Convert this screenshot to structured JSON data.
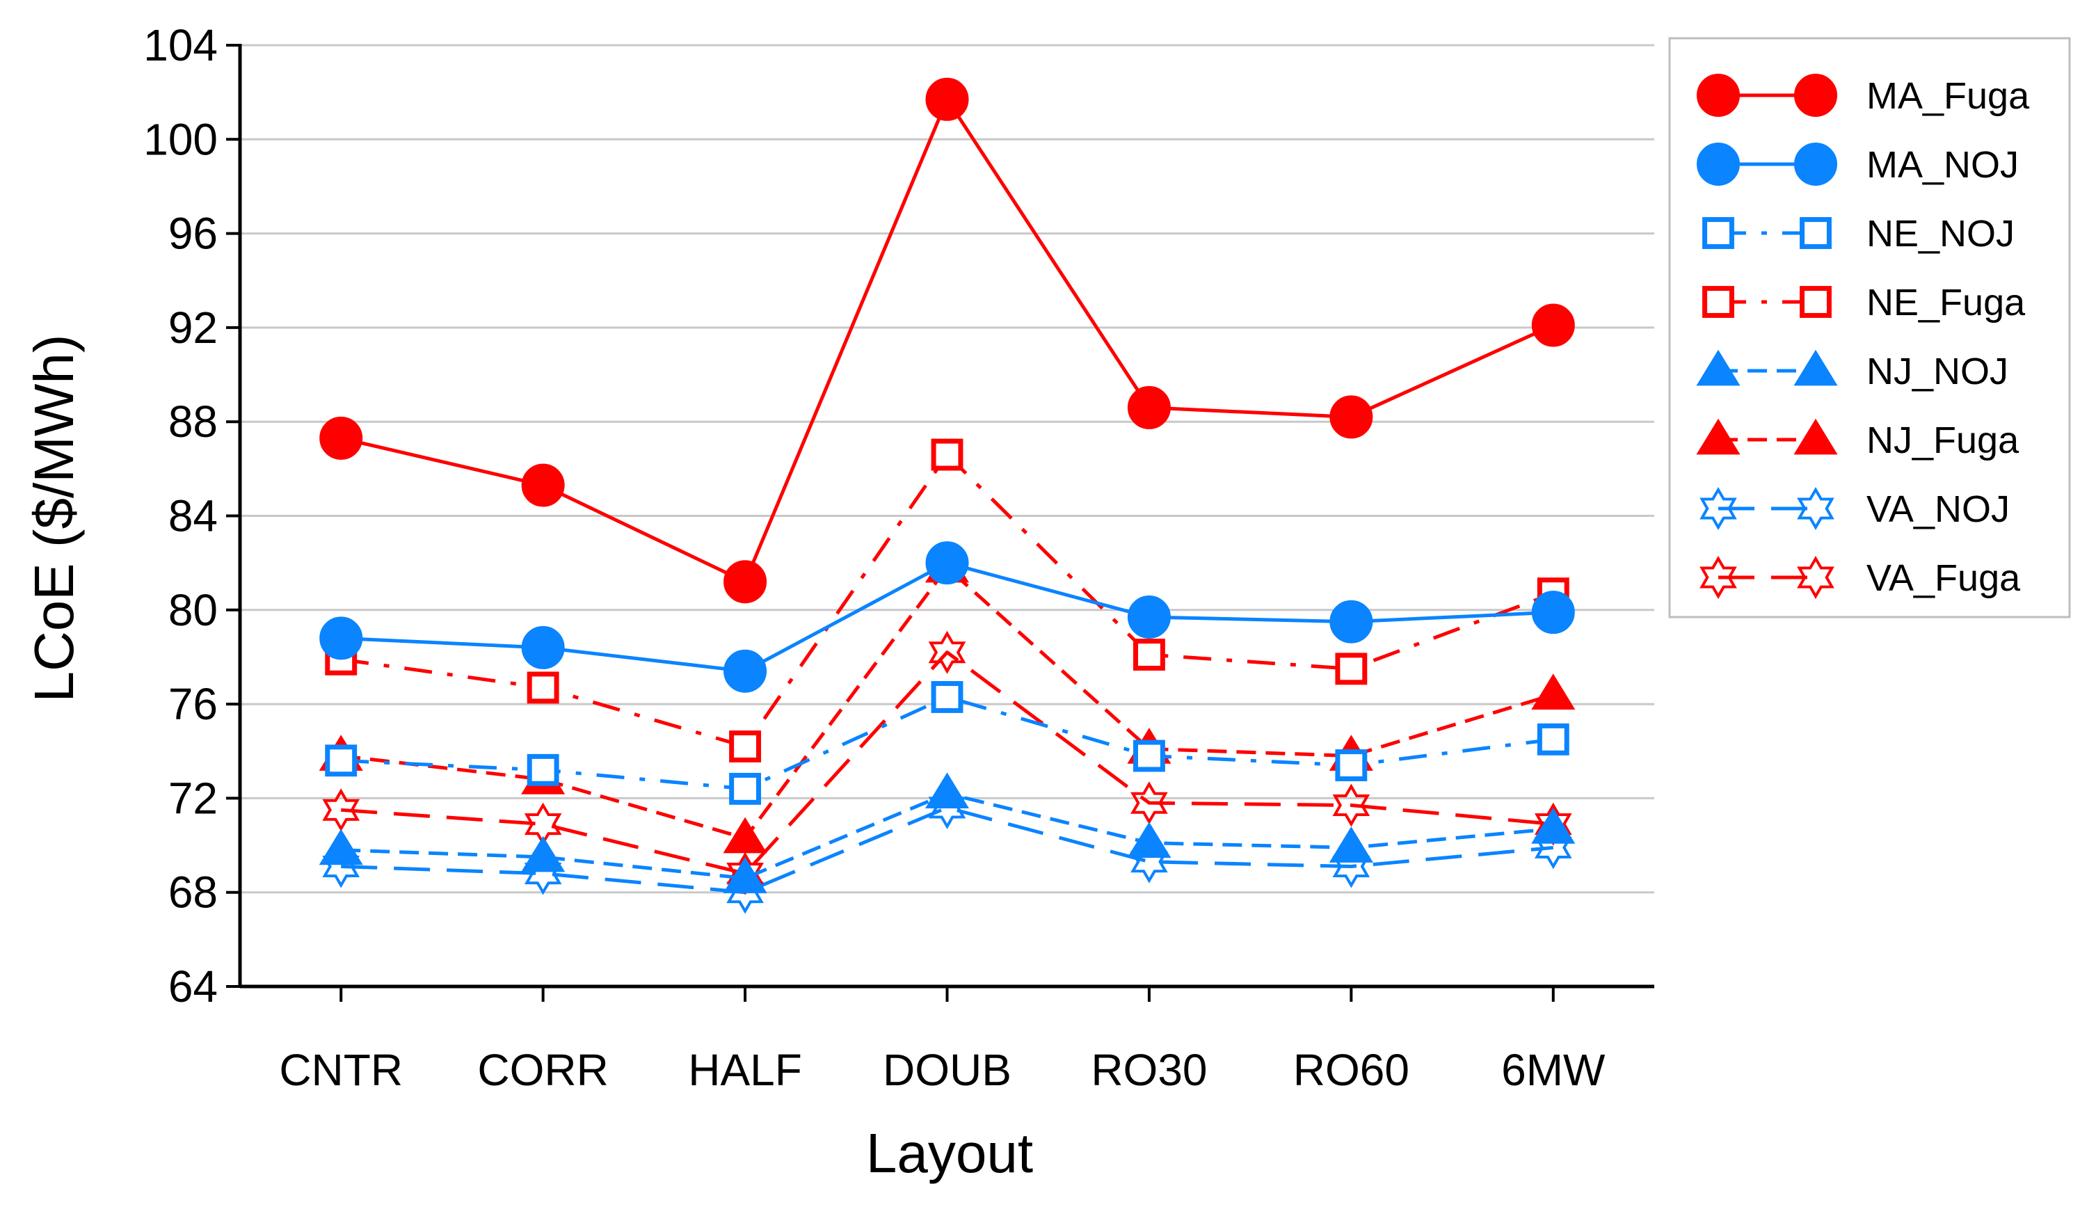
{
  "chart_data": {
    "type": "line",
    "xlabel": "Layout",
    "ylabel": "LCoE ($/MWh)",
    "ylim": [
      64,
      104
    ],
    "yticks": [
      64,
      68,
      72,
      76,
      80,
      84,
      88,
      92,
      96,
      100,
      104
    ],
    "categories": [
      "CNTR",
      "CORR",
      "HALF",
      "DOUB",
      "RO30",
      "RO60",
      "6MW"
    ],
    "grid": "horizontal",
    "legend_position": "right",
    "series": [
      {
        "name": "MA_Fuga",
        "color": "#ff0000",
        "marker": "circle",
        "line": "solid",
        "values": [
          87.3,
          85.3,
          81.2,
          101.7,
          88.6,
          88.2,
          92.1
        ]
      },
      {
        "name": "MA_NOJ",
        "color": "#0a84ff",
        "marker": "circle",
        "line": "solid",
        "values": [
          78.8,
          78.4,
          77.4,
          82.0,
          79.7,
          79.5,
          79.9
        ]
      },
      {
        "name": "NE_NOJ",
        "color": "#0a84ff",
        "marker": "square-open",
        "line": "dashdot",
        "values": [
          73.6,
          73.2,
          72.4,
          76.3,
          73.8,
          73.4,
          74.5
        ]
      },
      {
        "name": "NE_Fuga",
        "color": "#ff0000",
        "marker": "square-open",
        "line": "dashdot",
        "values": [
          77.9,
          76.7,
          74.2,
          86.6,
          78.1,
          77.5,
          80.7
        ]
      },
      {
        "name": "NJ_NOJ",
        "color": "#0a84ff",
        "marker": "triangle",
        "line": "dashed",
        "values": [
          69.8,
          69.5,
          68.6,
          72.2,
          70.1,
          69.9,
          70.7
        ]
      },
      {
        "name": "NJ_Fuga",
        "color": "#ff0000",
        "marker": "triangle",
        "line": "dashed",
        "values": [
          73.8,
          72.8,
          70.3,
          81.8,
          74.1,
          73.8,
          76.4
        ]
      },
      {
        "name": "VA_NOJ",
        "color": "#0a84ff",
        "marker": "star-open",
        "line": "longdash",
        "values": [
          69.1,
          68.8,
          68.0,
          71.6,
          69.3,
          69.1,
          69.9
        ]
      },
      {
        "name": "VA_Fuga",
        "color": "#ff0000",
        "marker": "star-open",
        "line": "longdash",
        "values": [
          71.5,
          70.9,
          68.8,
          78.2,
          71.8,
          71.7,
          70.9
        ]
      }
    ]
  }
}
